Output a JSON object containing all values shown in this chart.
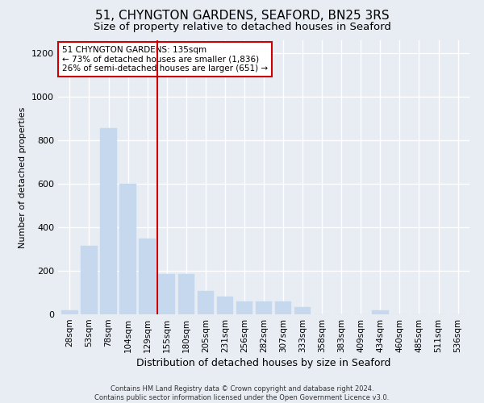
{
  "title": "51, CHYNGTON GARDENS, SEAFORD, BN25 3RS",
  "subtitle": "Size of property relative to detached houses in Seaford",
  "xlabel": "Distribution of detached houses by size in Seaford",
  "ylabel": "Number of detached properties",
  "footer_line1": "Contains HM Land Registry data © Crown copyright and database right 2024.",
  "footer_line2": "Contains public sector information licensed under the Open Government Licence v3.0.",
  "annotation_line1": "51 CHYNGTON GARDENS: 135sqm",
  "annotation_line2": "← 73% of detached houses are smaller (1,836)",
  "annotation_line3": "26% of semi-detached houses are larger (651) →",
  "bar_color": "#c5d8ee",
  "bar_edge_color": "#c5d8ee",
  "marker_color": "#cc0000",
  "categories": [
    "28sqm",
    "53sqm",
    "78sqm",
    "104sqm",
    "129sqm",
    "155sqm",
    "180sqm",
    "205sqm",
    "231sqm",
    "256sqm",
    "282sqm",
    "307sqm",
    "333sqm",
    "358sqm",
    "383sqm",
    "409sqm",
    "434sqm",
    "460sqm",
    "485sqm",
    "511sqm",
    "536sqm"
  ],
  "values": [
    18,
    315,
    855,
    600,
    350,
    185,
    185,
    108,
    80,
    60,
    60,
    60,
    35,
    0,
    0,
    0,
    18,
    0,
    0,
    0,
    0
  ],
  "ylim": [
    0,
    1260
  ],
  "yticks": [
    0,
    200,
    400,
    600,
    800,
    1000,
    1200
  ],
  "bg_color": "#e8edf4",
  "plot_bg_color": "#e8edf4",
  "grid_color": "#ffffff",
  "title_fontsize": 11,
  "subtitle_fontsize": 9.5,
  "red_line_x": 4.5
}
